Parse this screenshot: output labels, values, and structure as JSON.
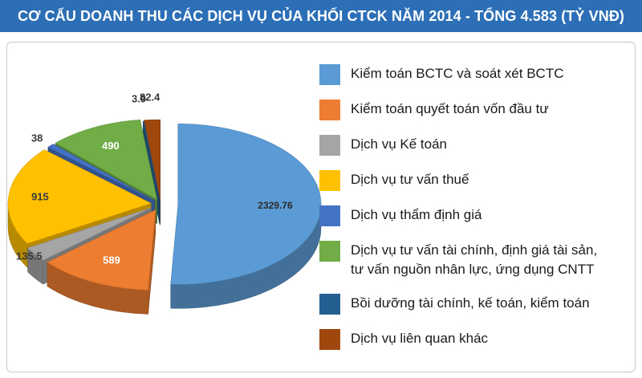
{
  "title": "CƠ CẤU DOANH THU CÁC DỊCH VỤ CỦA KHỐI CTCK NĂM 2014 - TỔNG 4.583 (TỶ VNĐ)",
  "chart_data": {
    "type": "pie",
    "title": "CƠ CẤU DOANH THU CÁC DỊCH VỤ CỦA KHỐI CTCK NĂM 2014 - TỔNG 4.583 (TỶ VNĐ)",
    "legend_position": "right",
    "slices": [
      {
        "name": "Kiểm toán BCTC và soát xét BCTC",
        "value": 2329.76,
        "label": "2329.76",
        "color": "#5b9bd5"
      },
      {
        "name": "Kiểm toán quyết toán vốn đầu tư",
        "value": 589,
        "label": "589",
        "color": "#ed7d31"
      },
      {
        "name": "Dịch vụ Kế toán",
        "value": 135.5,
        "label": "135.5",
        "color": "#a5a5a5"
      },
      {
        "name": "Dịch vụ tư vấn thuế",
        "value": 915,
        "label": "915",
        "color": "#ffc000"
      },
      {
        "name": "Dịch vụ thẩm định giá",
        "value": 38,
        "label": "38",
        "color": "#4472c4"
      },
      {
        "name": "Dịch vụ tư vấn tài chính, định giá tài sản,\ntư vấn nguồn nhân lực, ứng dụng CNTT",
        "value": 490,
        "label": "490",
        "color": "#70ad47"
      },
      {
        "name": "Bồi dưỡng tài chính, kế toán, kiểm toán",
        "value": 3.9,
        "label": "3.9",
        "color": "#255e91"
      },
      {
        "name": "Dịch vụ liên quan khác",
        "value": 82.4,
        "label": "82.4",
        "color": "#9e480e"
      }
    ]
  },
  "legend": [
    {
      "label": "Kiểm toán BCTC và soát xét BCTC",
      "color": "#5b9bd5"
    },
    {
      "label": "Kiểm toán quyết toán vốn đầu tư",
      "color": "#ed7d31"
    },
    {
      "label": "Dịch vụ Kế toán",
      "color": "#a5a5a5"
    },
    {
      "label": "Dịch vụ tư vấn thuế",
      "color": "#ffc000"
    },
    {
      "label": "Dịch vụ thẩm định giá",
      "color": "#4472c4"
    },
    {
      "label": "Dịch vụ tư vấn tài chính, định giá tài sản,\ntư vấn nguồn nhân lực, ứng dụng CNTT",
      "color": "#70ad47"
    },
    {
      "label": "Bồi dưỡng tài chính, kế toán, kiểm toán",
      "color": "#255e91"
    },
    {
      "label": "Dịch vụ liên quan khác",
      "color": "#9e480e"
    }
  ]
}
